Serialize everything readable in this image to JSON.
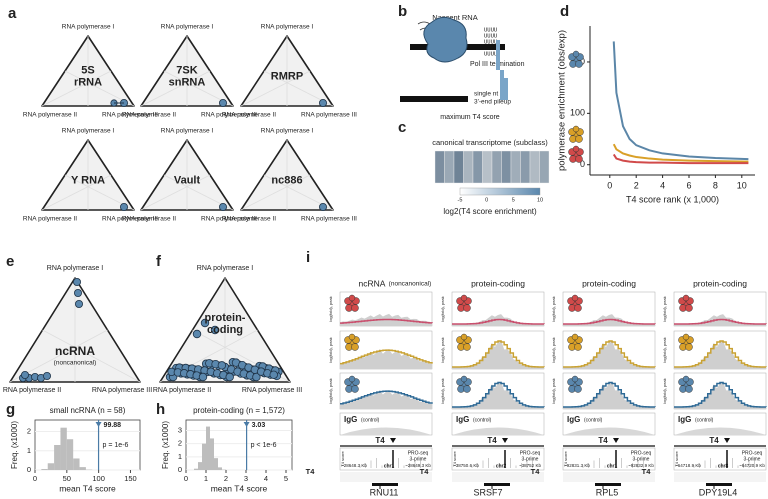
{
  "figure": {
    "a": {
      "label": "a",
      "pol1": "RNA polymerase I",
      "pol2": "RNA polymerase II",
      "pol3": "RNA polymerase III",
      "names": [
        [
          "5S",
          "rRNA"
        ],
        [
          "7SK",
          "snRNA"
        ],
        [
          "RMRP"
        ],
        [
          "Y RNA"
        ],
        [
          "Vault"
        ],
        [
          "nc886"
        ]
      ]
    },
    "b": {
      "label": "b",
      "nascent": "Nascent RNA",
      "u": "UUUU",
      "termination": "Pol III termination",
      "pileup": [
        "single nt",
        "3'-end pileup"
      ],
      "max": "maximum T4 score"
    },
    "c": {
      "label": "c",
      "title": "canonical transcriptome (subclass)",
      "ticks": [
        -5,
        0,
        5,
        10
      ],
      "legend": "log2(T4 score enrichment)"
    },
    "d": {
      "label": "d"
    },
    "e": {
      "label": "e",
      "name": [
        "ncRNA",
        "(noncanonical)"
      ]
    },
    "f": {
      "label": "f",
      "name": [
        "protein-",
        "coding"
      ]
    },
    "g": {
      "label": "g"
    },
    "h": {
      "label": "h"
    },
    "i": {
      "label": "i",
      "igg": "IgG",
      "control": "(control)",
      "t4": "T4",
      "axis": "log(fold), peak",
      "proseq": [
        "PRO-seq",
        "3-prime"
      ],
      "t4score": "T4 score",
      "columns": [
        {
          "title": "ncRNA",
          "subtitle": "(noncanonical)",
          "start": "~28648.3 Kb",
          "end": "~28649.3 Kb",
          "chr": "chr1",
          "gene": "RNU11"
        },
        {
          "title": "protein-coding",
          "start": "~38750.6 Kb",
          "end": "~38752 Kb",
          "chr": "chr2",
          "gene": "SRSF7"
        },
        {
          "title": "protein-coding",
          "start": "~92831.3 Kb",
          "end": "~92832.9 Kb",
          "chr": "chr1",
          "gene": "RPL5"
        },
        {
          "title": "protein-coding",
          "start": "~64718.9 Kb",
          "end": "~64720.9 Kb",
          "chr": "chr8",
          "gene": "DPY19L4"
        }
      ]
    }
  },
  "chart_data": [
    {
      "type": "line",
      "xlabel": "T4 score rank (x 1,000)",
      "ylabel": "polymerase enrichment (obs/exp)",
      "x": [
        0.3,
        0.5,
        1,
        1.5,
        2,
        3,
        4,
        6,
        8,
        10.5
      ],
      "series": [
        {
          "color": "#5b86a8",
          "values": [
            240,
            140,
            75,
            50,
            38,
            28,
            22,
            16,
            13,
            11
          ]
        },
        {
          "color": "#d9a028",
          "values": [
            40,
            30,
            22,
            18,
            15,
            12,
            10,
            8,
            7,
            6
          ]
        },
        {
          "color": "#d14a4a",
          "values": [
            20,
            12,
            8,
            6,
            5,
            4,
            4,
            3,
            3,
            3
          ]
        }
      ],
      "xlim": [
        -1.5,
        11
      ],
      "xticks": [
        0,
        2,
        4,
        6,
        8,
        10
      ],
      "ylim": [
        -20,
        270
      ],
      "yticks": [
        0,
        100,
        200
      ]
    },
    {
      "type": "histogram",
      "title": "small ncRNA (n = 58)",
      "xlabel": "mean T4 score",
      "ylabel": "Freq. (x1000)",
      "bins": [
        10,
        20,
        30,
        40,
        50,
        60,
        70,
        80,
        90
      ],
      "counts": [
        0.05,
        0.35,
        1.3,
        2.2,
        1.6,
        0.6,
        0.15,
        0.02
      ],
      "color": "#bdbdbd",
      "xlim": [
        0,
        165
      ],
      "xticks": [
        0,
        50,
        100,
        150
      ],
      "ylim": [
        0,
        2.6
      ],
      "yticks": [
        0,
        1,
        2
      ],
      "observed": 99.88,
      "p_label": "p = 1e-6",
      "marker_color": "#4a7ba6"
    },
    {
      "type": "histogram",
      "title": "protein-coding (n = 1,572)",
      "xlabel": "mean T4 score",
      "ylabel": "Freq. (x1000)",
      "bins": [
        0.4,
        0.6,
        0.8,
        1.0,
        1.2,
        1.4,
        1.6,
        1.8,
        2.0
      ],
      "counts": [
        0.1,
        0.6,
        2.0,
        3.3,
        2.4,
        0.9,
        0.2,
        0.03
      ],
      "color": "#bdbdbd",
      "xlim": [
        0,
        5.3
      ],
      "xticks": [
        0,
        1,
        2,
        3,
        4,
        5
      ],
      "ylim": [
        0,
        3.8
      ],
      "yticks": [
        0,
        1,
        2,
        3
      ],
      "observed": 3.03,
      "p_label": "p < 1e-6",
      "marker_color": "#4a7ba6"
    }
  ]
}
